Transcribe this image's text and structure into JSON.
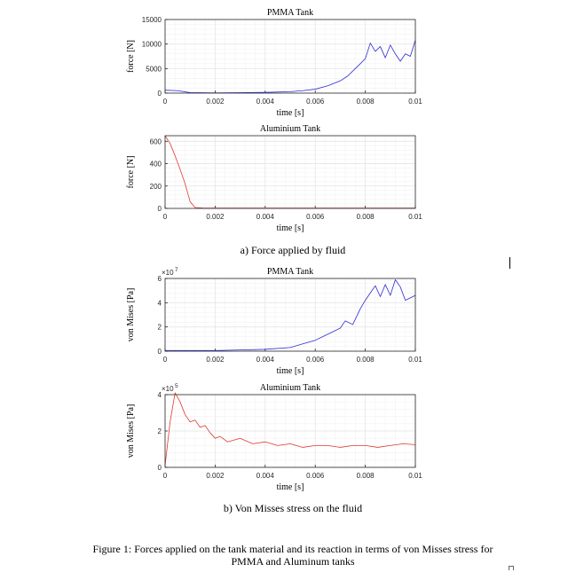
{
  "colors": {
    "pmma": "#2b2bd6",
    "aluminium": "#e03a2e",
    "grid": "#e6e6e6",
    "axis": "#262626"
  },
  "captions": {
    "a": "a)  Force applied by fluid",
    "b": "b)  Von Misses stress on the fluid",
    "figure": "Figure 1: Forces applied on the tank material and its reaction in terms of von Misses stress for PMMA and Aluminum tanks"
  },
  "chart_data": [
    {
      "type": "line",
      "title": "PMMA Tank",
      "xlabel": "time [s]",
      "ylabel": "force [N]",
      "xlim": [
        0,
        0.01
      ],
      "ylim": [
        0,
        15000
      ],
      "x_ticks": [
        "0",
        "0.002",
        "0.004",
        "0.006",
        "0.008",
        "0.01"
      ],
      "y_ticks": [
        "0",
        "5000",
        "10000",
        "15000"
      ],
      "y_multiplier": "",
      "grid": true,
      "series": [
        {
          "x": [
            0,
            0.0005,
            0.001,
            0.002,
            0.003,
            0.004,
            0.005,
            0.0055,
            0.006,
            0.0065,
            0.007,
            0.0073,
            0.0076,
            0.0078,
            0.008,
            0.0082,
            0.0084,
            0.0086,
            0.0088,
            0.009,
            0.0092,
            0.0094,
            0.0096,
            0.0098,
            0.01
          ],
          "values": [
            600,
            500,
            100,
            50,
            80,
            150,
            300,
            500,
            800,
            1500,
            2500,
            3500,
            5000,
            6000,
            7000,
            10200,
            8500,
            9500,
            7200,
            9800,
            8000,
            6500,
            8000,
            7500,
            10800
          ]
        }
      ]
    },
    {
      "type": "line",
      "title": "Aluminium Tank",
      "xlabel": "time [s]",
      "ylabel": "force [N]",
      "xlim": [
        0,
        0.01
      ],
      "ylim": [
        0,
        650
      ],
      "x_ticks": [
        "0",
        "0.002",
        "0.004",
        "0.006",
        "0.008",
        "0.01"
      ],
      "y_ticks": [
        "0",
        "200",
        "400",
        "600"
      ],
      "y_multiplier": "",
      "grid": true,
      "series": [
        {
          "x": [
            0,
            0.0002,
            0.0004,
            0.0006,
            0.0008,
            0.001,
            0.0012,
            0.0015,
            0.002,
            0.004,
            0.006,
            0.008,
            0.01
          ],
          "values": [
            650,
            580,
            470,
            350,
            220,
            60,
            8,
            4,
            3,
            3,
            3,
            3,
            3
          ]
        }
      ]
    },
    {
      "type": "line",
      "title": "PMMA Tank",
      "xlabel": "time [s]",
      "ylabel": "von Mises [Pa]",
      "xlim": [
        0,
        0.01
      ],
      "ylim": [
        0,
        6
      ],
      "x_ticks": [
        "0",
        "0.002",
        "0.004",
        "0.006",
        "0.008",
        "0.01"
      ],
      "y_ticks": [
        "0",
        "2",
        "4",
        "6"
      ],
      "y_multiplier": "×10",
      "y_exponent": "7",
      "grid": true,
      "series": [
        {
          "x": [
            0,
            0.001,
            0.002,
            0.003,
            0.004,
            0.005,
            0.0055,
            0.006,
            0.0065,
            0.007,
            0.0072,
            0.0075,
            0.0078,
            0.008,
            0.0082,
            0.0084,
            0.0086,
            0.0088,
            0.009,
            0.0092,
            0.0094,
            0.0096,
            0.0098,
            0.01
          ],
          "values": [
            0.05,
            0.05,
            0.05,
            0.1,
            0.15,
            0.3,
            0.6,
            0.9,
            1.4,
            1.9,
            2.5,
            2.2,
            3.5,
            4.2,
            4.8,
            5.4,
            4.5,
            5.5,
            4.6,
            5.9,
            5.3,
            4.2,
            4.4,
            4.6
          ]
        }
      ]
    },
    {
      "type": "line",
      "title": "Aluminium Tank",
      "xlabel": "time [s]",
      "ylabel": "von Mises [Pa]",
      "xlim": [
        0,
        0.01
      ],
      "ylim": [
        0,
        4
      ],
      "x_ticks": [
        "0",
        "0.002",
        "0.004",
        "0.006",
        "0.008",
        "0.01"
      ],
      "y_ticks": [
        "0",
        "2",
        "4"
      ],
      "y_multiplier": "×10",
      "y_exponent": "5",
      "grid": true,
      "series": [
        {
          "x": [
            0,
            0.0002,
            0.0004,
            0.0006,
            0.0008,
            0.001,
            0.0012,
            0.0014,
            0.0016,
            0.0018,
            0.002,
            0.0022,
            0.0025,
            0.003,
            0.0035,
            0.004,
            0.0045,
            0.005,
            0.0055,
            0.006,
            0.0065,
            0.007,
            0.0075,
            0.008,
            0.0085,
            0.009,
            0.0095,
            0.01
          ],
          "values": [
            0.1,
            2.5,
            4.1,
            3.6,
            2.9,
            2.5,
            2.6,
            2.2,
            2.3,
            1.9,
            1.6,
            1.7,
            1.4,
            1.6,
            1.3,
            1.4,
            1.2,
            1.3,
            1.1,
            1.2,
            1.2,
            1.1,
            1.2,
            1.2,
            1.1,
            1.2,
            1.3,
            1.25
          ]
        }
      ]
    }
  ]
}
